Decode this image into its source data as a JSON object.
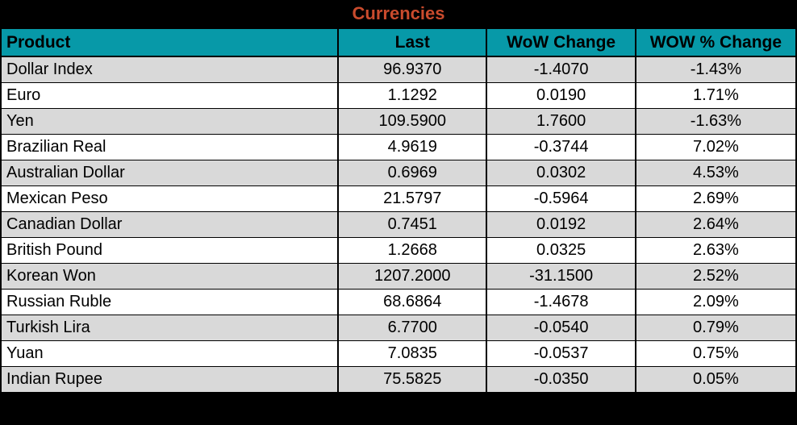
{
  "title": "Currencies",
  "columns": [
    {
      "key": "product",
      "label": "Product"
    },
    {
      "key": "last",
      "label": "Last"
    },
    {
      "key": "wow_change",
      "label": "WoW Change"
    },
    {
      "key": "wow_pct_change",
      "label": "WOW % Change"
    }
  ],
  "rows": [
    {
      "product": "Dollar Index",
      "last": "96.9370",
      "wow_change": "-1.4070",
      "wow_pct_change": "-1.43%"
    },
    {
      "product": "Euro",
      "last": "1.1292",
      "wow_change": "0.0190",
      "wow_pct_change": "1.71%"
    },
    {
      "product": "Yen",
      "last": "109.5900",
      "wow_change": "1.7600",
      "wow_pct_change": "-1.63%"
    },
    {
      "product": "Brazilian Real",
      "last": "4.9619",
      "wow_change": "-0.3744",
      "wow_pct_change": "7.02%"
    },
    {
      "product": "Australian Dollar",
      "last": "0.6969",
      "wow_change": "0.0302",
      "wow_pct_change": "4.53%"
    },
    {
      "product": "Mexican Peso",
      "last": "21.5797",
      "wow_change": "-0.5964",
      "wow_pct_change": "2.69%"
    },
    {
      "product": "Canadian Dollar",
      "last": "0.7451",
      "wow_change": "0.0192",
      "wow_pct_change": "2.64%"
    },
    {
      "product": "British Pound",
      "last": "1.2668",
      "wow_change": "0.0325",
      "wow_pct_change": "2.63%"
    },
    {
      "product": "Korean Won",
      "last": "1207.2000",
      "wow_change": "-31.1500",
      "wow_pct_change": "2.52%"
    },
    {
      "product": "Russian Ruble",
      "last": "68.6864",
      "wow_change": "-1.4678",
      "wow_pct_change": "2.09%"
    },
    {
      "product": "Turkish Lira",
      "last": "6.7700",
      "wow_change": "-0.0540",
      "wow_pct_change": "0.79%"
    },
    {
      "product": "Yuan",
      "last": "7.0835",
      "wow_change": "-0.0537",
      "wow_pct_change": "0.75%"
    },
    {
      "product": "Indian Rupee",
      "last": "75.5825",
      "wow_change": "-0.0350",
      "wow_pct_change": "0.05%"
    }
  ],
  "colors": {
    "title_bar_bg": "#000000",
    "title_text": "#C94B2D",
    "header_bg": "#0799A8",
    "header_text": "#000000",
    "row_alt_bg": "#D9D9D9",
    "row_bg": "#FFFFFF",
    "border": "#000000"
  },
  "chart_data": {
    "type": "table",
    "title": "Currencies",
    "columns": [
      "Product",
      "Last",
      "WoW Change",
      "WOW % Change"
    ],
    "rows": [
      [
        "Dollar Index",
        96.937,
        -1.407,
        "-1.43%"
      ],
      [
        "Euro",
        1.1292,
        0.019,
        "1.71%"
      ],
      [
        "Yen",
        109.59,
        1.76,
        "-1.63%"
      ],
      [
        "Brazilian Real",
        4.9619,
        -0.3744,
        "7.02%"
      ],
      [
        "Australian Dollar",
        0.6969,
        0.0302,
        "4.53%"
      ],
      [
        "Mexican Peso",
        21.5797,
        -0.5964,
        "2.69%"
      ],
      [
        "Canadian Dollar",
        0.7451,
        0.0192,
        "2.64%"
      ],
      [
        "British Pound",
        1.2668,
        0.0325,
        "2.63%"
      ],
      [
        "Korean Won",
        1207.2,
        -31.15,
        "2.52%"
      ],
      [
        "Russian Ruble",
        68.6864,
        -1.4678,
        "2.09%"
      ],
      [
        "Turkish Lira",
        6.77,
        -0.054,
        "0.79%"
      ],
      [
        "Yuan",
        7.0835,
        -0.0537,
        "0.75%"
      ],
      [
        "Indian Rupee",
        75.5825,
        -0.035,
        "0.05%"
      ]
    ],
    "layout": {
      "row_striping": true,
      "header_position": "top",
      "title_position": "top-center"
    }
  }
}
